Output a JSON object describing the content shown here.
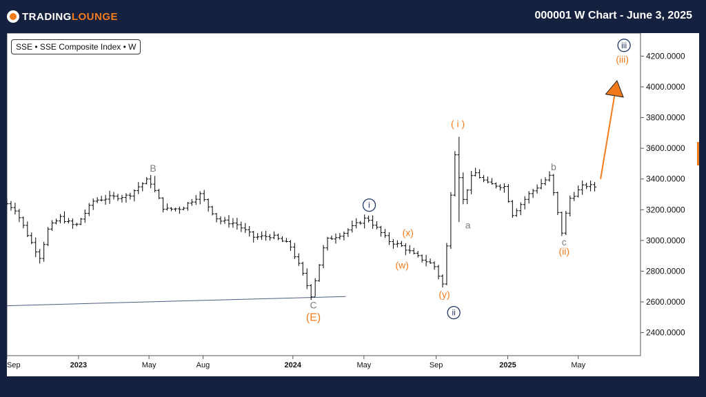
{
  "header": {
    "logo_main": "TRADING",
    "logo_accent": "LOUNGE",
    "title": "000001 W Chart - June 3, 2025"
  },
  "legend": "SSE • SSE Composite Index • W",
  "chart_data": {
    "type": "ohlc",
    "title": "000001 W Chart - June 3, 2025",
    "ylim": [
      2250,
      4350
    ],
    "y_ticks": [
      2400,
      2600,
      2800,
      3000,
      3200,
      3400,
      3600,
      3800,
      4000,
      4200
    ],
    "y_tick_labels": [
      "2400.0000",
      "2600.0000",
      "2800.0000",
      "3000.0000",
      "3200.0000",
      "3400.0000",
      "3600.0000",
      "3800.0000",
      "4000.0000",
      "4200.0000"
    ],
    "x_range": [
      "2022-09-01",
      "2025-08-15"
    ],
    "x_ticks": [
      {
        "date": "2022-09-01",
        "label": "Sep",
        "bold": false
      },
      {
        "date": "2023-01-01",
        "label": "2023",
        "bold": true
      },
      {
        "date": "2023-05-01",
        "label": "May",
        "bold": false
      },
      {
        "date": "2023-08-01",
        "label": "Aug",
        "bold": false
      },
      {
        "date": "2024-01-01",
        "label": "2024",
        "bold": true
      },
      {
        "date": "2024-05-01",
        "label": "May",
        "bold": false
      },
      {
        "date": "2024-09-01",
        "label": "Sep",
        "bold": false
      },
      {
        "date": "2025-01-01",
        "label": "2025",
        "bold": true
      },
      {
        "date": "2025-05-01",
        "label": "May",
        "bold": false
      }
    ],
    "price_path": [
      [
        "2022-09-01",
        3250
      ],
      [
        "2022-09-20",
        3200
      ],
      [
        "2022-10-15",
        3000
      ],
      [
        "2022-10-31",
        2890
      ],
      [
        "2022-11-15",
        3080
      ],
      [
        "2022-12-05",
        3150
      ],
      [
        "2022-12-31",
        3090
      ],
      [
        "2023-01-31",
        3260
      ],
      [
        "2023-02-28",
        3280
      ],
      [
        "2023-03-31",
        3290
      ],
      [
        "2023-04-20",
        3360
      ],
      [
        "2023-05-05",
        3400
      ],
      [
        "2023-05-31",
        3200
      ],
      [
        "2023-06-30",
        3210
      ],
      [
        "2023-07-31",
        3300
      ],
      [
        "2023-08-31",
        3130
      ],
      [
        "2023-09-30",
        3110
      ],
      [
        "2023-10-31",
        3020
      ],
      [
        "2023-11-30",
        3030
      ],
      [
        "2023-12-31",
        2970
      ],
      [
        "2024-01-20",
        2800
      ],
      [
        "2024-02-05",
        2640
      ],
      [
        "2024-03-01",
        3000
      ],
      [
        "2024-04-01",
        3050
      ],
      [
        "2024-05-10",
        3150
      ],
      [
        "2024-06-15",
        3000
      ],
      [
        "2024-07-10",
        2960
      ],
      [
        "2024-08-01",
        2900
      ],
      [
        "2024-09-01",
        2840
      ],
      [
        "2024-09-18",
        2700
      ],
      [
        "2024-09-30",
        3300
      ],
      [
        "2024-10-08",
        3600
      ],
      [
        "2024-10-20",
        3250
      ],
      [
        "2024-11-08",
        3450
      ],
      [
        "2024-12-01",
        3370
      ],
      [
        "2024-12-31",
        3350
      ],
      [
        "2025-01-13",
        3170
      ],
      [
        "2025-02-10",
        3300
      ],
      [
        "2025-03-18",
        3420
      ],
      [
        "2025-04-07",
        3050
      ],
      [
        "2025-04-20",
        3270
      ],
      [
        "2025-05-15",
        3360
      ],
      [
        "2025-06-01",
        3350
      ]
    ],
    "bar_ranges": [
      {
        "date": "2023-05-08",
        "high": 3420
      },
      {
        "date": "2024-02-05",
        "low": 2635
      },
      {
        "date": "2024-10-08",
        "high": 3675
      },
      {
        "date": "2024-10-08",
        "low": 3120
      },
      {
        "date": "2025-04-07",
        "low": 3035
      }
    ],
    "trendline": {
      "start": [
        "2022-09-01",
        2575
      ],
      "end": [
        "2024-03-31",
        2635
      ]
    },
    "projection_arrow": {
      "start": [
        "2025-06-08",
        3400
      ],
      "end": [
        "2025-07-06",
        4040
      ]
    },
    "annotations": [
      {
        "text": "B",
        "date": "2023-05-08",
        "price": 3470,
        "color": "gray",
        "style": "plain"
      },
      {
        "text": "C",
        "date": "2024-02-05",
        "price": 2580,
        "color": "gray",
        "style": "plain"
      },
      {
        "text": "(E)",
        "date": "2024-02-05",
        "price": 2500,
        "color": "orange",
        "style": "plain"
      },
      {
        "text": "i",
        "date": "2024-05-10",
        "price": 3230,
        "color": "navy",
        "style": "circled"
      },
      {
        "text": "(x)",
        "date": "2024-07-15",
        "price": 3050,
        "color": "orange",
        "style": "plain"
      },
      {
        "text": "(w)",
        "date": "2024-07-05",
        "price": 2840,
        "color": "orange",
        "style": "plain"
      },
      {
        "text": "(y)",
        "date": "2024-09-15",
        "price": 2650,
        "color": "orange",
        "style": "plain"
      },
      {
        "text": "ii",
        "date": "2024-10-01",
        "price": 2530,
        "color": "navy",
        "style": "circled"
      },
      {
        "text": "( i )",
        "date": "2024-10-08",
        "price": 3760,
        "color": "orange",
        "style": "plain"
      },
      {
        "text": "a",
        "date": "2024-10-25",
        "price": 3100,
        "color": "gray",
        "style": "plain"
      },
      {
        "text": "b",
        "date": "2025-03-20",
        "price": 3480,
        "color": "gray",
        "style": "plain"
      },
      {
        "text": "c",
        "date": "2025-04-07",
        "price": 2990,
        "color": "gray",
        "style": "plain"
      },
      {
        "text": "(ii)",
        "date": "2025-04-07",
        "price": 2930,
        "color": "orange",
        "style": "plain"
      },
      {
        "text": "(iii)",
        "date": "2025-07-15",
        "price": 4180,
        "color": "orange",
        "style": "plain"
      },
      {
        "text": "iii",
        "date": "2025-07-18",
        "price": 4270,
        "color": "navy",
        "style": "circled"
      }
    ],
    "colors": {
      "orange": "#f27a1a",
      "navy": "#1f3565",
      "gray": "#7d7d7d",
      "bars": "#000000",
      "trendline": "#4a5c80"
    }
  }
}
